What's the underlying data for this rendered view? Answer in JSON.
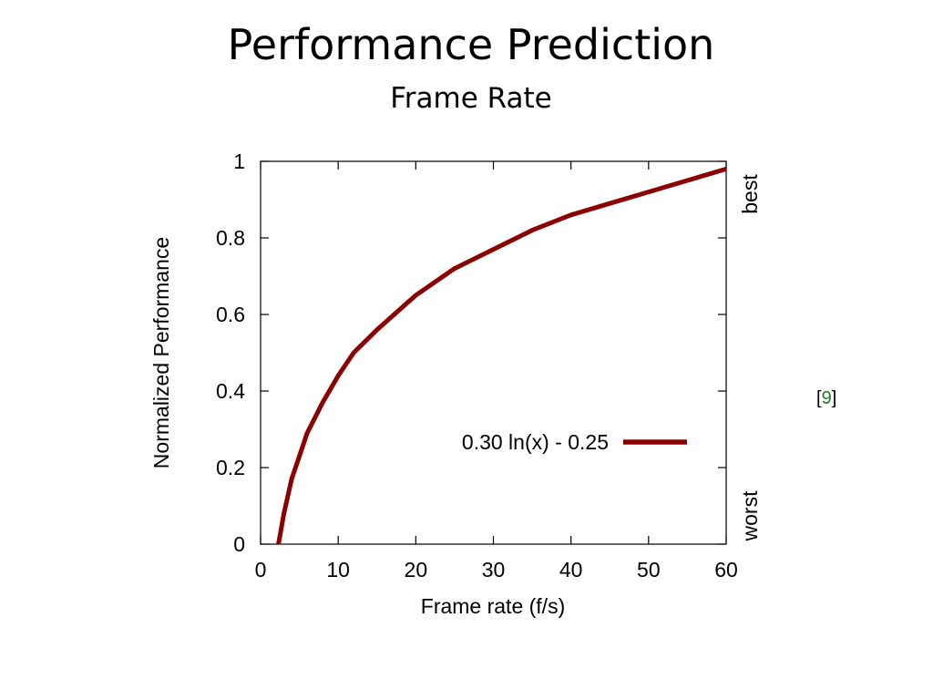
{
  "slide": {
    "title": "Performance Prediction",
    "subtitle": "Frame Rate"
  },
  "citation": {
    "open": "[",
    "number": "9",
    "close": "]"
  },
  "colors": {
    "curve": "#8b0000",
    "citation_number": "#1f7a1f"
  },
  "chart_data": {
    "type": "line",
    "xlabel": "Frame rate (f/s)",
    "ylabel": "Normalized Performance",
    "xlim": [
      0,
      60
    ],
    "ylim": [
      0,
      1
    ],
    "xticks": [
      0,
      10,
      20,
      30,
      40,
      50,
      60
    ],
    "yticks": [
      0,
      0.2,
      0.4,
      0.6,
      0.8,
      1
    ],
    "ytick_labels": [
      "0",
      "0.2",
      "0.4",
      "0.6",
      "0.8",
      "1"
    ],
    "right_axis_labels": {
      "top": "best",
      "bottom": "worst"
    },
    "legend": "right-center",
    "grid": false,
    "series": [
      {
        "name": "0.30 ln(x) - 0.25",
        "x": [
          2.3,
          3,
          4,
          5,
          6,
          8,
          10,
          12,
          15,
          20,
          25,
          30,
          35,
          40,
          45,
          50,
          55,
          60
        ],
        "y": [
          0.0,
          0.08,
          0.17,
          0.23,
          0.29,
          0.37,
          0.44,
          0.5,
          0.56,
          0.65,
          0.72,
          0.77,
          0.82,
          0.86,
          0.89,
          0.92,
          0.95,
          0.98
        ]
      }
    ]
  }
}
